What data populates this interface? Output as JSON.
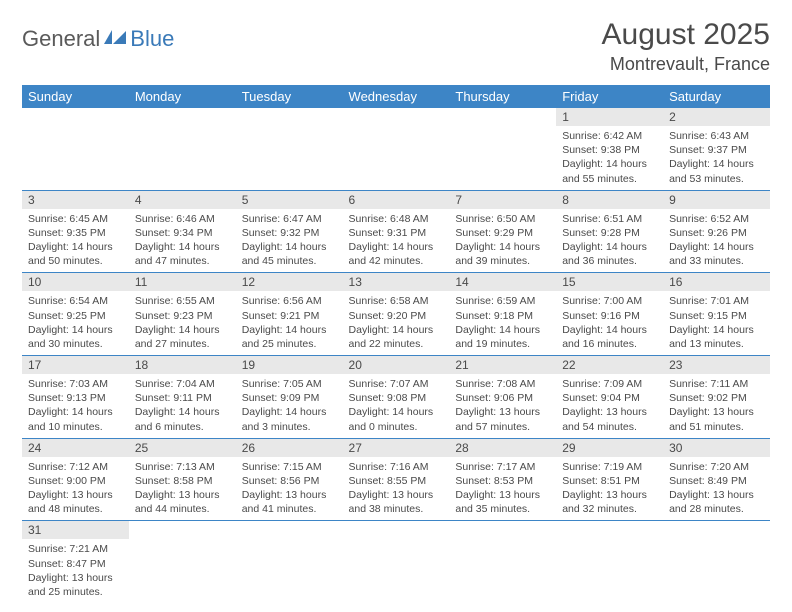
{
  "logo": {
    "text1": "General",
    "text2": "Blue"
  },
  "title": "August 2025",
  "location": "Montrevault, France",
  "colors": {
    "header_bg": "#3d85c6",
    "header_text": "#ffffff",
    "daynum_bg": "#e8e8e8",
    "border": "#3d85c6",
    "text": "#4a4a4a",
    "logo_blue": "#3a7ab8"
  },
  "weekdays": [
    "Sunday",
    "Monday",
    "Tuesday",
    "Wednesday",
    "Thursday",
    "Friday",
    "Saturday"
  ],
  "layout": {
    "columns": 7,
    "rows": 6,
    "first_weekday_index": 5
  },
  "days": [
    {
      "n": 1,
      "sunrise": "6:42 AM",
      "sunset": "9:38 PM",
      "daylight": "14 hours and 55 minutes."
    },
    {
      "n": 2,
      "sunrise": "6:43 AM",
      "sunset": "9:37 PM",
      "daylight": "14 hours and 53 minutes."
    },
    {
      "n": 3,
      "sunrise": "6:45 AM",
      "sunset": "9:35 PM",
      "daylight": "14 hours and 50 minutes."
    },
    {
      "n": 4,
      "sunrise": "6:46 AM",
      "sunset": "9:34 PM",
      "daylight": "14 hours and 47 minutes."
    },
    {
      "n": 5,
      "sunrise": "6:47 AM",
      "sunset": "9:32 PM",
      "daylight": "14 hours and 45 minutes."
    },
    {
      "n": 6,
      "sunrise": "6:48 AM",
      "sunset": "9:31 PM",
      "daylight": "14 hours and 42 minutes."
    },
    {
      "n": 7,
      "sunrise": "6:50 AM",
      "sunset": "9:29 PM",
      "daylight": "14 hours and 39 minutes."
    },
    {
      "n": 8,
      "sunrise": "6:51 AM",
      "sunset": "9:28 PM",
      "daylight": "14 hours and 36 minutes."
    },
    {
      "n": 9,
      "sunrise": "6:52 AM",
      "sunset": "9:26 PM",
      "daylight": "14 hours and 33 minutes."
    },
    {
      "n": 10,
      "sunrise": "6:54 AM",
      "sunset": "9:25 PM",
      "daylight": "14 hours and 30 minutes."
    },
    {
      "n": 11,
      "sunrise": "6:55 AM",
      "sunset": "9:23 PM",
      "daylight": "14 hours and 27 minutes."
    },
    {
      "n": 12,
      "sunrise": "6:56 AM",
      "sunset": "9:21 PM",
      "daylight": "14 hours and 25 minutes."
    },
    {
      "n": 13,
      "sunrise": "6:58 AM",
      "sunset": "9:20 PM",
      "daylight": "14 hours and 22 minutes."
    },
    {
      "n": 14,
      "sunrise": "6:59 AM",
      "sunset": "9:18 PM",
      "daylight": "14 hours and 19 minutes."
    },
    {
      "n": 15,
      "sunrise": "7:00 AM",
      "sunset": "9:16 PM",
      "daylight": "14 hours and 16 minutes."
    },
    {
      "n": 16,
      "sunrise": "7:01 AM",
      "sunset": "9:15 PM",
      "daylight": "14 hours and 13 minutes."
    },
    {
      "n": 17,
      "sunrise": "7:03 AM",
      "sunset": "9:13 PM",
      "daylight": "14 hours and 10 minutes."
    },
    {
      "n": 18,
      "sunrise": "7:04 AM",
      "sunset": "9:11 PM",
      "daylight": "14 hours and 6 minutes."
    },
    {
      "n": 19,
      "sunrise": "7:05 AM",
      "sunset": "9:09 PM",
      "daylight": "14 hours and 3 minutes."
    },
    {
      "n": 20,
      "sunrise": "7:07 AM",
      "sunset": "9:08 PM",
      "daylight": "14 hours and 0 minutes."
    },
    {
      "n": 21,
      "sunrise": "7:08 AM",
      "sunset": "9:06 PM",
      "daylight": "13 hours and 57 minutes."
    },
    {
      "n": 22,
      "sunrise": "7:09 AM",
      "sunset": "9:04 PM",
      "daylight": "13 hours and 54 minutes."
    },
    {
      "n": 23,
      "sunrise": "7:11 AM",
      "sunset": "9:02 PM",
      "daylight": "13 hours and 51 minutes."
    },
    {
      "n": 24,
      "sunrise": "7:12 AM",
      "sunset": "9:00 PM",
      "daylight": "13 hours and 48 minutes."
    },
    {
      "n": 25,
      "sunrise": "7:13 AM",
      "sunset": "8:58 PM",
      "daylight": "13 hours and 44 minutes."
    },
    {
      "n": 26,
      "sunrise": "7:15 AM",
      "sunset": "8:56 PM",
      "daylight": "13 hours and 41 minutes."
    },
    {
      "n": 27,
      "sunrise": "7:16 AM",
      "sunset": "8:55 PM",
      "daylight": "13 hours and 38 minutes."
    },
    {
      "n": 28,
      "sunrise": "7:17 AM",
      "sunset": "8:53 PM",
      "daylight": "13 hours and 35 minutes."
    },
    {
      "n": 29,
      "sunrise": "7:19 AM",
      "sunset": "8:51 PM",
      "daylight": "13 hours and 32 minutes."
    },
    {
      "n": 30,
      "sunrise": "7:20 AM",
      "sunset": "8:49 PM",
      "daylight": "13 hours and 28 minutes."
    },
    {
      "n": 31,
      "sunrise": "7:21 AM",
      "sunset": "8:47 PM",
      "daylight": "13 hours and 25 minutes."
    }
  ],
  "labels": {
    "sunrise": "Sunrise:",
    "sunset": "Sunset:",
    "daylight": "Daylight:"
  }
}
